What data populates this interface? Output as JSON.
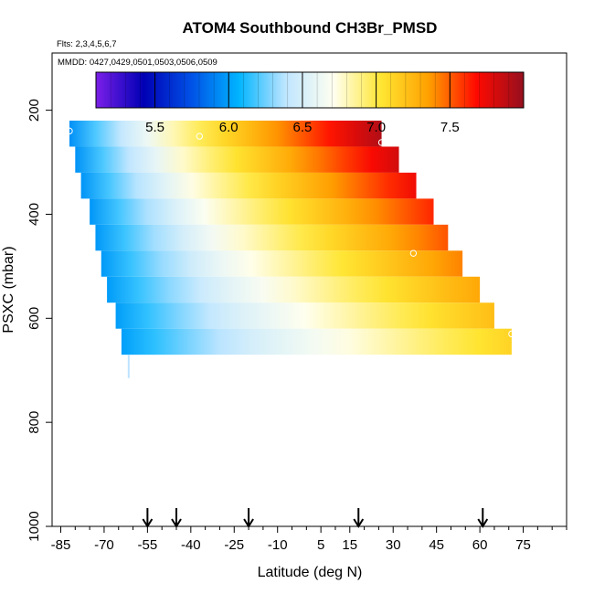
{
  "chart_data": {
    "type": "heatmap",
    "title": "ATOM4 Southbound CH3Br_PMSD",
    "subtitle_flights": "Flts: 2,3,4,5,6,7",
    "subtitle_dates": "MMDD: 0427,0429,0501,0503,0506,0509",
    "xlabel": "Latitude (deg N)",
    "ylabel": "PSXC (mbar)",
    "xlim": [
      -88,
      90
    ],
    "ylim": [
      1000,
      90
    ],
    "x_tick_values": [
      -85,
      -70,
      -55,
      -40,
      -25,
      -10,
      5,
      15,
      30,
      45,
      60,
      75
    ],
    "x_tick_labels": [
      "-85",
      "-70",
      "-55",
      "-40",
      "-25",
      "-10",
      "5",
      "15",
      "30",
      "45",
      "60",
      "75"
    ],
    "y_tick_values": [
      200,
      400,
      600,
      800,
      1000
    ],
    "y_tick_labels": [
      "200",
      "400",
      "600",
      "800",
      "1000"
    ],
    "colorbar": {
      "range": [
        5.1,
        8.0
      ],
      "tick_values": [
        5.5,
        6.0,
        6.5,
        7.0,
        7.5
      ],
      "tick_labels": [
        "5.5",
        "6.0",
        "6.5",
        "7.0",
        "7.5"
      ],
      "colors": [
        "#7b1fe8",
        "#0000b4",
        "#0050e6",
        "#00b4ff",
        "#c0e6ff",
        "#fffff0",
        "#ffe632",
        "#ffa000",
        "#ff0a00",
        "#960f1e"
      ]
    },
    "layers": [
      {
        "p_top": 220,
        "p_bot": 270,
        "lat_min": -82,
        "lat_max": 26
      },
      {
        "p_top": 270,
        "p_bot": 320,
        "lat_min": -80,
        "lat_max": 32
      },
      {
        "p_top": 320,
        "p_bot": 370,
        "lat_min": -78,
        "lat_max": 38
      },
      {
        "p_top": 370,
        "p_bot": 420,
        "lat_min": -75,
        "lat_max": 44
      },
      {
        "p_top": 420,
        "p_bot": 470,
        "lat_min": -73,
        "lat_max": 49
      },
      {
        "p_top": 470,
        "p_bot": 520,
        "lat_min": -71,
        "lat_max": 54
      },
      {
        "p_top": 520,
        "p_bot": 570,
        "lat_min": -69,
        "lat_max": 60
      },
      {
        "p_top": 570,
        "p_bot": 620,
        "lat_min": -66,
        "lat_max": 65
      },
      {
        "p_top": 620,
        "p_bot": 670,
        "lat_min": -64,
        "lat_max": 71
      }
    ],
    "thin_column": {
      "lat": -61.5,
      "p_top": 670,
      "p_bot": 715
    },
    "sample_points": [
      {
        "lat": -82,
        "p": 240
      },
      {
        "lat": -37,
        "p": 250
      },
      {
        "lat": 26,
        "p": 262
      },
      {
        "lat": 37,
        "p": 475
      },
      {
        "lat": 71,
        "p": 630
      }
    ],
    "flight_arrows_lat": [
      -55,
      -45,
      -20,
      18,
      61
    ]
  }
}
